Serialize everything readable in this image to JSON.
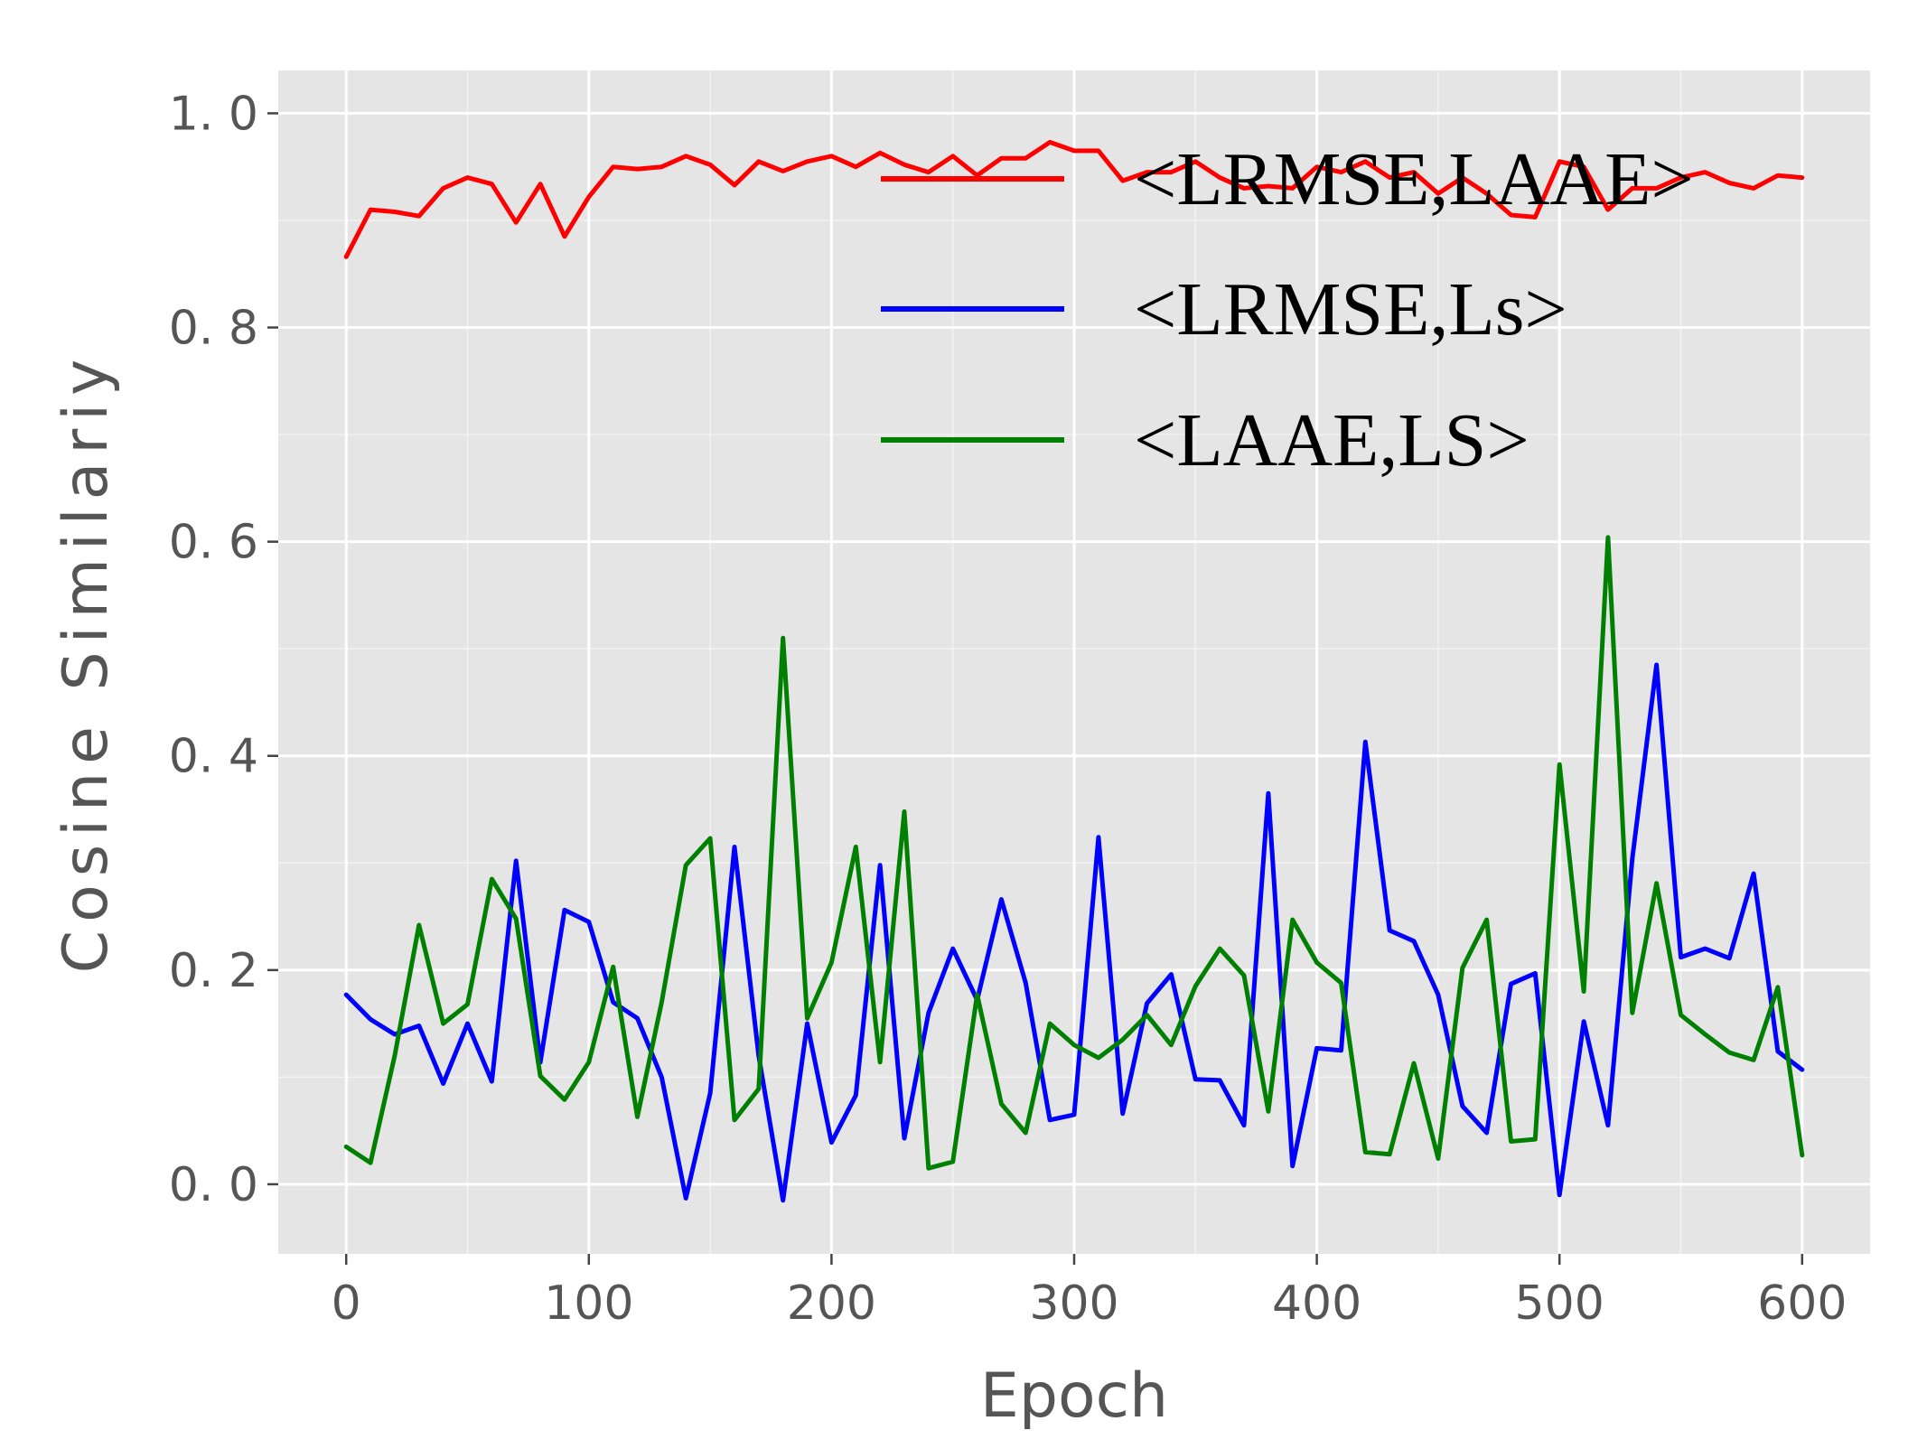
{
  "chart_data": {
    "type": "line",
    "title": "",
    "xlabel": "Epoch",
    "ylabel": "Cosine Similariy",
    "xlim": [
      -28,
      628
    ],
    "ylim": [
      -0.065,
      1.04
    ],
    "xticks": [
      0,
      100,
      200,
      300,
      400,
      500,
      600
    ],
    "xtick_labels": [
      "0",
      "100",
      "200",
      "300",
      "400",
      "500",
      "600"
    ],
    "yticks": [
      0.0,
      0.2,
      0.4,
      0.6,
      0.8,
      1.0
    ],
    "ytick_labels": [
      "0. 0",
      "0. 2",
      "0. 4",
      "0. 6",
      "0. 8",
      "1. 0"
    ],
    "grid": true,
    "legend_position": "top-right",
    "x": [
      0,
      10,
      20,
      30,
      40,
      50,
      60,
      70,
      80,
      90,
      100,
      110,
      120,
      130,
      140,
      150,
      160,
      170,
      180,
      190,
      200,
      210,
      220,
      230,
      240,
      250,
      260,
      270,
      280,
      290,
      300,
      310,
      320,
      330,
      340,
      350,
      360,
      370,
      380,
      390,
      400,
      410,
      420,
      430,
      440,
      450,
      460,
      470,
      480,
      490,
      500,
      510,
      520,
      530,
      540,
      550,
      560,
      570,
      580,
      590,
      600
    ],
    "series": [
      {
        "name": "<LRMSE,LAAE>",
        "color": "#ff0000",
        "values": [
          0.866,
          0.91,
          0.908,
          0.904,
          0.93,
          0.94,
          0.934,
          0.898,
          0.934,
          0.885,
          0.922,
          0.95,
          0.948,
          0.95,
          0.96,
          0.952,
          0.933,
          0.955,
          0.946,
          0.955,
          0.96,
          0.95,
          0.963,
          0.952,
          0.945,
          0.96,
          0.942,
          0.958,
          0.958,
          0.973,
          0.965,
          0.965,
          0.937,
          0.945,
          0.945,
          0.955,
          0.94,
          0.93,
          0.932,
          0.93,
          0.95,
          0.945,
          0.955,
          0.94,
          0.945,
          0.925,
          0.94,
          0.925,
          0.905,
          0.903,
          0.955,
          0.95,
          0.91,
          0.93,
          0.93,
          0.94,
          0.945,
          0.935,
          0.93,
          0.942,
          0.94
        ]
      },
      {
        "name": "<LRMSE,Ls>",
        "color": "#0000ff",
        "values": [
          0.177,
          0.154,
          0.14,
          0.148,
          0.094,
          0.15,
          0.096,
          0.302,
          0.114,
          0.256,
          0.245,
          0.17,
          0.155,
          0.1,
          -0.013,
          0.085,
          0.315,
          0.12,
          -0.015,
          0.15,
          0.039,
          0.083,
          0.298,
          0.043,
          0.16,
          0.22,
          0.172,
          0.266,
          0.188,
          0.06,
          0.065,
          0.324,
          0.066,
          0.169,
          0.196,
          0.098,
          0.097,
          0.055,
          0.365,
          0.017,
          0.127,
          0.125,
          0.413,
          0.237,
          0.227,
          0.177,
          0.073,
          0.048,
          0.187,
          0.197,
          -0.01,
          0.152,
          0.055,
          0.304,
          0.485,
          0.212,
          0.22,
          0.211,
          0.29,
          0.124,
          0.107
        ]
      },
      {
        "name": "<LAAE,LS>",
        "color": "#008000",
        "values": [
          0.035,
          0.02,
          0.12,
          0.242,
          0.15,
          0.168,
          0.285,
          0.248,
          0.101,
          0.079,
          0.114,
          0.203,
          0.063,
          0.17,
          0.298,
          0.323,
          0.06,
          0.089,
          0.51,
          0.155,
          0.207,
          0.315,
          0.114,
          0.348,
          0.015,
          0.021,
          0.177,
          0.075,
          0.048,
          0.15,
          0.13,
          0.118,
          0.135,
          0.158,
          0.13,
          0.185,
          0.22,
          0.195,
          0.068,
          0.247,
          0.207,
          0.188,
          0.03,
          0.028,
          0.113,
          0.024,
          0.202,
          0.247,
          0.04,
          0.042,
          0.392,
          0.18,
          0.604,
          0.16,
          0.281,
          0.158,
          0.14,
          0.123,
          0.116,
          0.184,
          0.027
        ]
      }
    ]
  }
}
